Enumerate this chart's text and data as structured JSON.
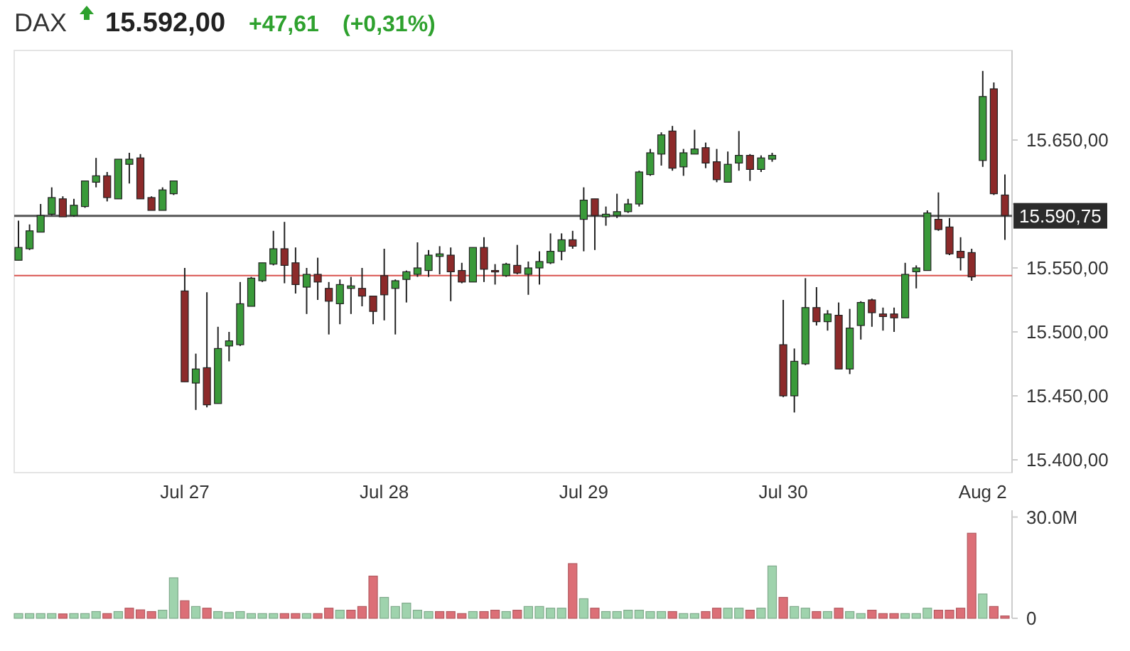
{
  "chart_data": [
    {
      "type": "candlestick",
      "title": "DAX",
      "annotations": [
        "15.592,00",
        "+47,61",
        "(+0,31%)"
      ],
      "categories": [
        null,
        null,
        null,
        null,
        null,
        null,
        null,
        null,
        null,
        null,
        null,
        null,
        null,
        null,
        null,
        "Jul 27",
        null,
        null,
        null,
        null,
        null,
        null,
        null,
        null,
        null,
        null,
        null,
        null,
        null,
        null,
        null,
        null,
        null,
        "Jul 28",
        null,
        null,
        null,
        null,
        null,
        null,
        null,
        null,
        null,
        null,
        null,
        null,
        null,
        null,
        null,
        null,
        null,
        "Jul 29",
        null,
        null,
        null,
        null,
        null,
        null,
        null,
        null,
        null,
        null,
        null,
        null,
        null,
        null,
        null,
        null,
        null,
        "Jul 30",
        null,
        null,
        null,
        null,
        null,
        null,
        null,
        null,
        null,
        null,
        null,
        null,
        null,
        null,
        null,
        null,
        null,
        "Aug 2",
        null,
        null
      ],
      "ohlc": [
        [
          15556,
          15587,
          15556,
          15566
        ],
        [
          15565,
          15584,
          15564,
          15579
        ],
        [
          15578,
          15600,
          15578,
          15591
        ],
        [
          15592,
          15613,
          15591,
          15605
        ],
        [
          15604,
          15606,
          15590,
          15590
        ],
        [
          15591,
          15604,
          15590,
          15599
        ],
        [
          15598,
          15618,
          15597,
          15618
        ],
        [
          15617,
          15636,
          15613,
          15622
        ],
        [
          15622,
          15625,
          15602,
          15605
        ],
        [
          15604,
          15635,
          15604,
          15635
        ],
        [
          15631,
          15640,
          15616,
          15635
        ],
        [
          15636,
          15639,
          15604,
          15604
        ],
        [
          15605,
          15606,
          15595,
          15595
        ],
        [
          15595,
          15613,
          15595,
          15611
        ],
        [
          15608,
          15618,
          15607,
          15618
        ],
        [
          15532,
          15550,
          15461,
          15461
        ],
        [
          15460,
          15483,
          15439,
          15471
        ],
        [
          15472,
          15531,
          15441,
          15443
        ],
        [
          15444,
          15504,
          15444,
          15487
        ],
        [
          15489,
          15500,
          15477,
          15493
        ],
        [
          15490,
          15539,
          15489,
          15522
        ],
        [
          15520,
          15543,
          15520,
          15542
        ],
        [
          15540,
          15554,
          15539,
          15554
        ],
        [
          15553,
          15579,
          15552,
          15565
        ],
        [
          15565,
          15586,
          15538,
          15552
        ],
        [
          15554,
          15566,
          15530,
          15537
        ],
        [
          15535,
          15550,
          15514,
          15545
        ],
        [
          15545,
          15558,
          15525,
          15539
        ],
        [
          15534,
          15539,
          15498,
          15524
        ],
        [
          15522,
          15541,
          15506,
          15537
        ],
        [
          15534,
          15543,
          15514,
          15536
        ],
        [
          15534,
          15550,
          15520,
          15528
        ],
        [
          15528,
          15528,
          15506,
          15516
        ],
        [
          15544,
          15565,
          15509,
          15529
        ],
        [
          15534,
          15541,
          15498,
          15540
        ],
        [
          15541,
          15548,
          15523,
          15547
        ],
        [
          15545,
          15570,
          15543,
          15550
        ],
        [
          15548,
          15564,
          15543,
          15560
        ],
        [
          15559,
          15567,
          15545,
          15561
        ],
        [
          15560,
          15566,
          15524,
          15547
        ],
        [
          15548,
          15554,
          15538,
          15539
        ],
        [
          15539,
          15566,
          15539,
          15566
        ],
        [
          15566,
          15574,
          15539,
          15549
        ],
        [
          15548,
          15553,
          15537,
          15547
        ],
        [
          15544,
          15554,
          15543,
          15553
        ],
        [
          15552,
          15568,
          15545,
          15546
        ],
        [
          15545,
          15555,
          15529,
          15550
        ],
        [
          15550,
          15563,
          15537,
          15555
        ],
        [
          15554,
          15577,
          15553,
          15563
        ],
        [
          15563,
          15577,
          15556,
          15572
        ],
        [
          15572,
          15579,
          15565,
          15567
        ],
        [
          15588,
          15613,
          15563,
          15603
        ],
        [
          15604,
          15604,
          15564,
          15591
        ],
        [
          15590,
          15598,
          15583,
          15592
        ],
        [
          15591,
          15608,
          15589,
          15594
        ],
        [
          15594,
          15604,
          15593,
          15600
        ],
        [
          15600,
          15626,
          15598,
          15625
        ],
        [
          15623,
          15643,
          15622,
          15640
        ],
        [
          15639,
          15656,
          15630,
          15654
        ],
        [
          15657,
          15661,
          15626,
          15628
        ],
        [
          15629,
          15643,
          15622,
          15640
        ],
        [
          15639,
          15658,
          15639,
          15643
        ],
        [
          15644,
          15648,
          15628,
          15632
        ],
        [
          15633,
          15643,
          15617,
          15619
        ],
        [
          15617,
          15641,
          15617,
          15631
        ],
        [
          15632,
          15657,
          15626,
          15638
        ],
        [
          15638,
          15639,
          15618,
          15627
        ],
        [
          15627,
          15638,
          15625,
          15636
        ],
        [
          15635,
          15640,
          15633,
          15638
        ],
        [
          15490,
          15525,
          15449,
          15450
        ],
        [
          15450,
          15487,
          15437,
          15477
        ],
        [
          15475,
          15542,
          15474,
          15519
        ],
        [
          15519,
          15535,
          15505,
          15508
        ],
        [
          15508,
          15517,
          15501,
          15514
        ],
        [
          15513,
          15523,
          15471,
          15471
        ],
        [
          15471,
          15518,
          15467,
          15503
        ],
        [
          15505,
          15524,
          15494,
          15523
        ],
        [
          15525,
          15526,
          15504,
          15515
        ],
        [
          15514,
          15519,
          15501,
          15512
        ],
        [
          15514,
          15519,
          15500,
          15511
        ],
        [
          15511,
          15554,
          15511,
          15545
        ],
        [
          15547,
          15552,
          15534,
          15550
        ],
        [
          15548,
          15595,
          15548,
          15593
        ],
        [
          15588,
          15609,
          15579,
          15580
        ],
        [
          15582,
          15589,
          15560,
          15561
        ],
        [
          15563,
          15574,
          15548,
          15558
        ],
        [
          15562,
          15565,
          15540,
          15543
        ],
        [
          15634,
          15704,
          15629,
          15684
        ],
        [
          15690,
          15695,
          15607,
          15608
        ],
        [
          15607,
          15623,
          15572,
          15591
        ]
      ],
      "ylim": [
        15390,
        15720
      ],
      "yticks": [
        {
          "value": 15400,
          "label": "15.400,00"
        },
        {
          "value": 15450,
          "label": "15.450,00"
        },
        {
          "value": 15500,
          "label": "15.500,00"
        },
        {
          "value": 15550,
          "label": "15.550,00"
        },
        {
          "value": 15600,
          "label": null
        },
        {
          "value": 15650,
          "label": "15.650,00"
        }
      ],
      "ref_lines": [
        {
          "axis": "y",
          "value": 15590.75,
          "label": "15.590,75",
          "color": "#555555"
        },
        {
          "axis": "y",
          "value": 15544,
          "color": "#d9534f"
        }
      ]
    },
    {
      "type": "bar",
      "categories": [
        null,
        null,
        null,
        null,
        null,
        null,
        null,
        null,
        null,
        null,
        null,
        null,
        null,
        null,
        null,
        null,
        null,
        null,
        null,
        null,
        null,
        null,
        null,
        null,
        null,
        null,
        null,
        null,
        null,
        null,
        null,
        null,
        null,
        null,
        null,
        null,
        null,
        null,
        null,
        null,
        null,
        null,
        null,
        null,
        null,
        null,
        null,
        null,
        null,
        null,
        null,
        null,
        null,
        null,
        null,
        null,
        null,
        null,
        null,
        null,
        null,
        null,
        null,
        null,
        null,
        null,
        null,
        null,
        null,
        null,
        null,
        null,
        null,
        null,
        null,
        null,
        null,
        null,
        null,
        null,
        null,
        null,
        null,
        null,
        null,
        null,
        null,
        null,
        null,
        null
      ],
      "values": [
        1.4,
        1.4,
        1.4,
        1.4,
        1.3,
        1.4,
        1.4,
        2.0,
        1.4,
        2.0,
        3.0,
        2.5,
        2.0,
        2.4,
        12.0,
        5.2,
        3.5,
        3.0,
        2.0,
        1.7,
        2.0,
        1.4,
        1.4,
        1.4,
        1.4,
        1.4,
        1.4,
        1.4,
        3.0,
        2.4,
        2.4,
        3.5,
        12.5,
        6.2,
        3.5,
        4.5,
        2.4,
        2.0,
        2.0,
        2.0,
        1.4,
        2.0,
        2.0,
        2.4,
        2.0,
        2.4,
        3.5,
        3.5,
        3.0,
        3.0,
        16.2,
        5.8,
        3.0,
        2.0,
        2.0,
        2.4,
        2.4,
        2.0,
        2.0,
        2.0,
        1.4,
        1.4,
        2.0,
        3.0,
        3.0,
        3.0,
        2.4,
        3.0,
        15.5,
        6.2,
        3.5,
        3.0,
        2.0,
        2.0,
        3.0,
        2.0,
        1.4,
        2.4,
        1.4,
        1.4,
        1.4,
        1.4,
        3.0,
        2.4,
        2.4,
        3.0,
        25.2,
        7.2,
        3.5,
        0.7
      ],
      "colors": [
        "#9fd3ad",
        "#9fd3ad",
        "#9fd3ad",
        "#9fd3ad",
        "#dc6f77",
        "#9fd3ad",
        "#9fd3ad",
        "#9fd3ad",
        "#dc6f77",
        "#9fd3ad",
        "#dc6f77",
        "#dc6f77",
        "#dc6f77",
        "#9fd3ad",
        "#9fd3ad",
        "#dc6f77",
        "#9fd3ad",
        "#dc6f77",
        "#9fd3ad",
        "#9fd3ad",
        "#9fd3ad",
        "#9fd3ad",
        "#9fd3ad",
        "#9fd3ad",
        "#dc6f77",
        "#dc6f77",
        "#9fd3ad",
        "#dc6f77",
        "#dc6f77",
        "#9fd3ad",
        "#dc6f77",
        "#dc6f77",
        "#dc6f77",
        "#9fd3ad",
        "#9fd3ad",
        "#9fd3ad",
        "#9fd3ad",
        "#9fd3ad",
        "#dc6f77",
        "#dc6f77",
        "#dc6f77",
        "#9fd3ad",
        "#dc6f77",
        "#dc6f77",
        "#9fd3ad",
        "#dc6f77",
        "#9fd3ad",
        "#9fd3ad",
        "#9fd3ad",
        "#9fd3ad",
        "#dc6f77",
        "#9fd3ad",
        "#dc6f77",
        "#9fd3ad",
        "#9fd3ad",
        "#9fd3ad",
        "#9fd3ad",
        "#9fd3ad",
        "#9fd3ad",
        "#dc6f77",
        "#9fd3ad",
        "#9fd3ad",
        "#dc6f77",
        "#dc6f77",
        "#9fd3ad",
        "#9fd3ad",
        "#dc6f77",
        "#9fd3ad",
        "#9fd3ad",
        "#dc6f77",
        "#9fd3ad",
        "#9fd3ad",
        "#dc6f77",
        "#9fd3ad",
        "#dc6f77",
        "#9fd3ad",
        "#9fd3ad",
        "#dc6f77",
        "#dc6f77",
        "#dc6f77",
        "#9fd3ad",
        "#9fd3ad",
        "#9fd3ad",
        "#dc6f77",
        "#dc6f77",
        "#dc6f77",
        "#dc6f77",
        "#9fd3ad",
        "#dc6f77",
        "#dc6f77"
      ],
      "ylim": [
        0,
        32
      ],
      "yticks": [
        {
          "value": 30,
          "label": "30.0M"
        },
        0
      ],
      "tick_labels": "y"
    }
  ]
}
